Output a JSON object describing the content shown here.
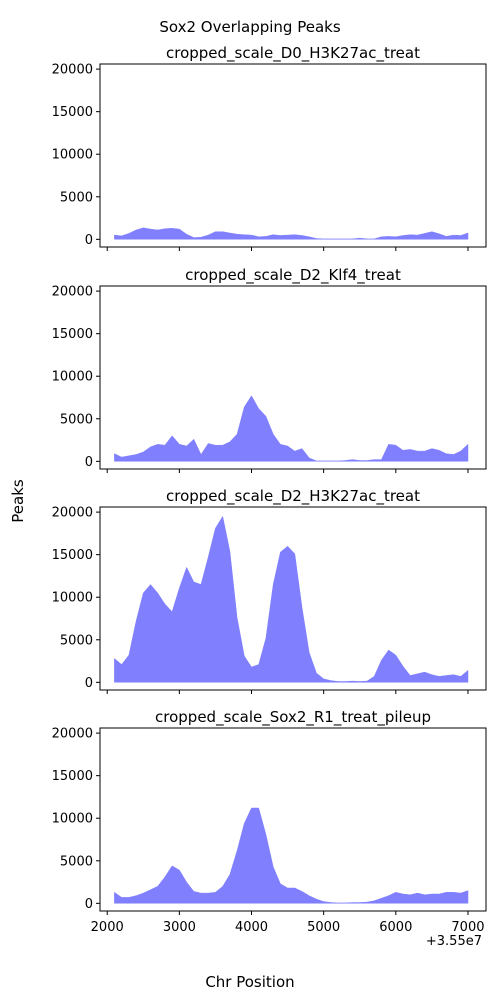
{
  "figure": {
    "suptitle": "Sox2 Overlapping Peaks",
    "xlabel": "Chr Position",
    "ylabel": "Peaks",
    "offset_text": "+3.55e7"
  },
  "chart_data": [
    {
      "type": "area",
      "title": "cropped_scale_D0_H3K27ac_treat",
      "color": "#8080ff",
      "xlim": [
        1900,
        7250
      ],
      "ylim": [
        -900,
        20600
      ],
      "xticks": [
        2000,
        3000,
        4000,
        5000,
        6000,
        7000
      ],
      "yticks": [
        0,
        5000,
        10000,
        15000,
        20000
      ],
      "x": [
        2100,
        2200,
        2300,
        2400,
        2500,
        2600,
        2700,
        2800,
        2900,
        3000,
        3100,
        3200,
        3300,
        3400,
        3500,
        3600,
        3700,
        3800,
        3900,
        4000,
        4100,
        4200,
        4300,
        4400,
        4500,
        4600,
        4700,
        4800,
        4900,
        5000,
        5100,
        5200,
        5300,
        5400,
        5500,
        5600,
        5700,
        5800,
        5900,
        6000,
        6100,
        6200,
        6300,
        6400,
        6500,
        6600,
        6700,
        6800,
        6900,
        7000
      ],
      "y": [
        500,
        400,
        700,
        1100,
        1350,
        1200,
        1100,
        1250,
        1300,
        1200,
        600,
        200,
        250,
        500,
        900,
        900,
        750,
        600,
        550,
        500,
        300,
        350,
        550,
        450,
        500,
        550,
        450,
        300,
        100,
        50,
        50,
        50,
        50,
        50,
        150,
        50,
        50,
        300,
        350,
        300,
        450,
        550,
        500,
        700,
        900,
        650,
        350,
        500,
        450,
        750
      ]
    },
    {
      "type": "area",
      "title": "cropped_scale_D2_Klf4_treat",
      "color": "#8080ff",
      "xlim": [
        1900,
        7250
      ],
      "ylim": [
        -900,
        20600
      ],
      "xticks": [
        2000,
        3000,
        4000,
        5000,
        6000,
        7000
      ],
      "yticks": [
        0,
        5000,
        10000,
        15000,
        20000
      ],
      "x": [
        2100,
        2200,
        2300,
        2400,
        2500,
        2600,
        2700,
        2800,
        2900,
        3000,
        3100,
        3200,
        3300,
        3400,
        3500,
        3600,
        3700,
        3800,
        3900,
        4000,
        4100,
        4200,
        4300,
        4400,
        4500,
        4600,
        4700,
        4800,
        4900,
        5000,
        5100,
        5200,
        5300,
        5400,
        5500,
        5600,
        5700,
        5800,
        5900,
        6000,
        6100,
        6200,
        6300,
        6400,
        6500,
        6600,
        6700,
        6800,
        6900,
        7000
      ],
      "y": [
        900,
        500,
        650,
        800,
        1100,
        1700,
        2000,
        1900,
        3000,
        2000,
        1800,
        2600,
        800,
        2100,
        1900,
        1900,
        2300,
        3200,
        6400,
        7700,
        6200,
        5300,
        3200,
        2000,
        1800,
        1200,
        1500,
        400,
        50,
        50,
        50,
        50,
        100,
        200,
        100,
        100,
        200,
        200,
        2000,
        1900,
        1300,
        1400,
        1200,
        1200,
        1500,
        1300,
        900,
        800,
        1200,
        2000
      ]
    },
    {
      "type": "area",
      "title": "cropped_scale_D2_H3K27ac_treat",
      "color": "#8080ff",
      "xlim": [
        1900,
        7250
      ],
      "ylim": [
        -900,
        20600
      ],
      "xticks": [
        2000,
        3000,
        4000,
        5000,
        6000,
        7000
      ],
      "yticks": [
        0,
        5000,
        10000,
        15000,
        20000
      ],
      "x": [
        2100,
        2200,
        2300,
        2400,
        2500,
        2600,
        2700,
        2800,
        2900,
        3000,
        3100,
        3200,
        3300,
        3400,
        3500,
        3600,
        3700,
        3800,
        3900,
        4000,
        4100,
        4200,
        4300,
        4400,
        4500,
        4600,
        4700,
        4800,
        4900,
        5000,
        5100,
        5200,
        5300,
        5400,
        5500,
        5600,
        5700,
        5800,
        5900,
        6000,
        6100,
        6200,
        6300,
        6400,
        6500,
        6600,
        6700,
        6800,
        6900,
        7000
      ],
      "y": [
        2800,
        2100,
        3200,
        7200,
        10500,
        11500,
        10500,
        9200,
        8300,
        11100,
        13500,
        11800,
        11500,
        14700,
        18100,
        19500,
        15400,
        7600,
        3100,
        1800,
        2100,
        5200,
        11500,
        15300,
        16000,
        15100,
        8800,
        3500,
        1100,
        400,
        200,
        100,
        100,
        150,
        100,
        150,
        700,
        2600,
        3800,
        3200,
        1900,
        800,
        1000,
        1200,
        900,
        700,
        800,
        900,
        700,
        1400
      ]
    },
    {
      "type": "area",
      "title": "cropped_scale_Sox2_R1_treat_pileup",
      "color": "#8080ff",
      "xlim": [
        1900,
        7250
      ],
      "ylim": [
        -900,
        20600
      ],
      "xticks": [
        2000,
        3000,
        4000,
        5000,
        6000,
        7000
      ],
      "yticks": [
        0,
        5000,
        10000,
        15000,
        20000
      ],
      "xtick_labels": [
        "2000",
        "3000",
        "4000",
        "5000",
        "6000",
        "7000"
      ],
      "ytick_labels": [
        "0",
        "5000",
        "10000",
        "15000",
        "20000"
      ],
      "x": [
        2100,
        2200,
        2300,
        2400,
        2500,
        2600,
        2700,
        2800,
        2900,
        3000,
        3100,
        3200,
        3300,
        3400,
        3500,
        3600,
        3700,
        3800,
        3900,
        4000,
        4100,
        4200,
        4300,
        4400,
        4500,
        4600,
        4700,
        4800,
        4900,
        5000,
        5100,
        5200,
        5300,
        5400,
        5500,
        5600,
        5700,
        5800,
        5900,
        6000,
        6100,
        6200,
        6300,
        6400,
        6500,
        6600,
        6700,
        6800,
        6900,
        7000
      ],
      "y": [
        1300,
        700,
        700,
        900,
        1200,
        1600,
        2000,
        3100,
        4400,
        3900,
        2500,
        1400,
        1200,
        1200,
        1300,
        2000,
        3400,
        6200,
        9400,
        11200,
        11200,
        8100,
        4300,
        2300,
        1800,
        1800,
        1400,
        900,
        500,
        200,
        100,
        50,
        50,
        100,
        100,
        150,
        300,
        600,
        900,
        1300,
        1100,
        1000,
        1200,
        1000,
        1100,
        1100,
        1300,
        1300,
        1200,
        1500
      ]
    }
  ]
}
